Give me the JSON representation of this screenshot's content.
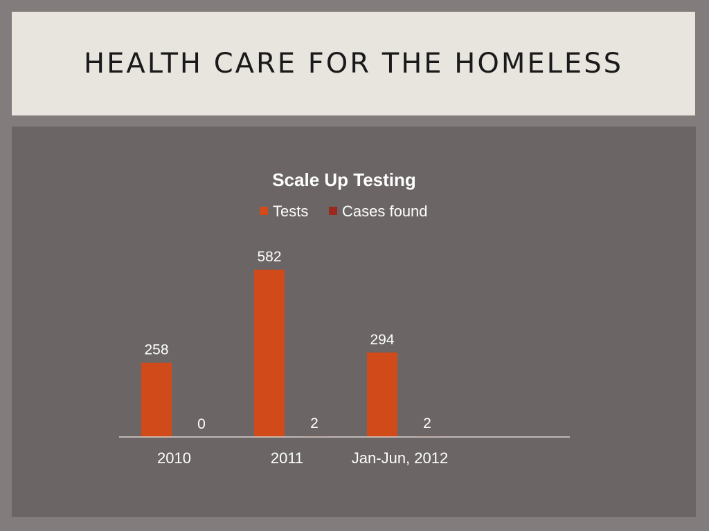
{
  "slide": {
    "title": "HEALTH CARE FOR THE HOMELESS"
  },
  "colors": {
    "tests": "#d14a1a",
    "cases_found": "#9a2a1e",
    "background_panel": "#6b6565",
    "title_band": "#e8e4de"
  },
  "chart_data": {
    "type": "bar",
    "title": "Scale Up Testing",
    "categories": [
      "2010",
      "2011",
      "Jan-Jun, 2012"
    ],
    "series": [
      {
        "name": "Tests",
        "values": [
          258,
          582,
          294
        ]
      },
      {
        "name": "Cases found",
        "values": [
          0,
          2,
          2
        ]
      }
    ],
    "data_labels": [
      [
        "258",
        "582",
        "294"
      ],
      [
        "0",
        "2",
        "2"
      ]
    ],
    "legend_position": "top",
    "grid": false,
    "ylim": [
      0,
      600
    ]
  }
}
